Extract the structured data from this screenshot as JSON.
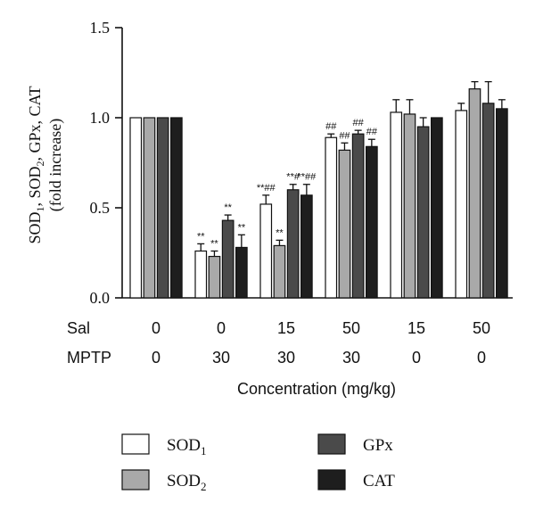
{
  "chart_data": {
    "type": "bar",
    "ylabel": "SOD1, SOD2, GPx, CAT (fold increase)",
    "ylabel_parts": [
      "SOD",
      "1",
      ", SOD",
      "2",
      ", GPx, CAT"
    ],
    "ylabel_line2": "(fold increase)",
    "xlabel": "Concentration (mg/kg)",
    "ylim": [
      0,
      1.5
    ],
    "yticks": [
      "0.0",
      "0.5",
      "1.0",
      "1.5"
    ],
    "grid": false,
    "legend_position": "bottom",
    "group_rows": [
      {
        "name": "Sal",
        "values": [
          "0",
          "0",
          "15",
          "50",
          "15",
          "50"
        ]
      },
      {
        "name": "MPTP",
        "values": [
          "0",
          "30",
          "30",
          "30",
          "0",
          "0"
        ]
      }
    ],
    "series": [
      {
        "name": "SOD1",
        "label_base": "SOD",
        "label_sub": "1",
        "fill": "#ffffff",
        "values": [
          1.0,
          0.26,
          0.52,
          0.89,
          1.03,
          1.04
        ],
        "errors": [
          0,
          0.04,
          0.05,
          0.02,
          0.07,
          0.04
        ],
        "annotations": [
          "",
          "**",
          "**##",
          "##",
          "",
          ""
        ]
      },
      {
        "name": "SOD2",
        "label_base": "SOD",
        "label_sub": "2",
        "fill": "#a9a9a9",
        "values": [
          1.0,
          0.23,
          0.29,
          0.82,
          1.02,
          1.16
        ],
        "errors": [
          0,
          0.03,
          0.03,
          0.04,
          0.08,
          0.04
        ],
        "annotations": [
          "",
          "**",
          "**",
          "##",
          "",
          ""
        ]
      },
      {
        "name": "GPx",
        "label_base": "GPx",
        "label_sub": "",
        "fill": "#4a4a4a",
        "values": [
          1.0,
          0.43,
          0.6,
          0.91,
          0.95,
          1.08
        ],
        "errors": [
          0,
          0.03,
          0.03,
          0.02,
          0.05,
          0.12
        ],
        "annotations": [
          "",
          "**",
          "**#",
          "##",
          "",
          ""
        ]
      },
      {
        "name": "CAT",
        "label_base": "CAT",
        "label_sub": "",
        "fill": "#1e1e1e",
        "values": [
          1.0,
          0.28,
          0.57,
          0.84,
          1.0,
          1.05
        ],
        "errors": [
          0,
          0.07,
          0.06,
          0.04,
          0,
          0.05
        ],
        "annotations": [
          "",
          "**",
          "**##",
          "##",
          "",
          ""
        ]
      }
    ]
  }
}
